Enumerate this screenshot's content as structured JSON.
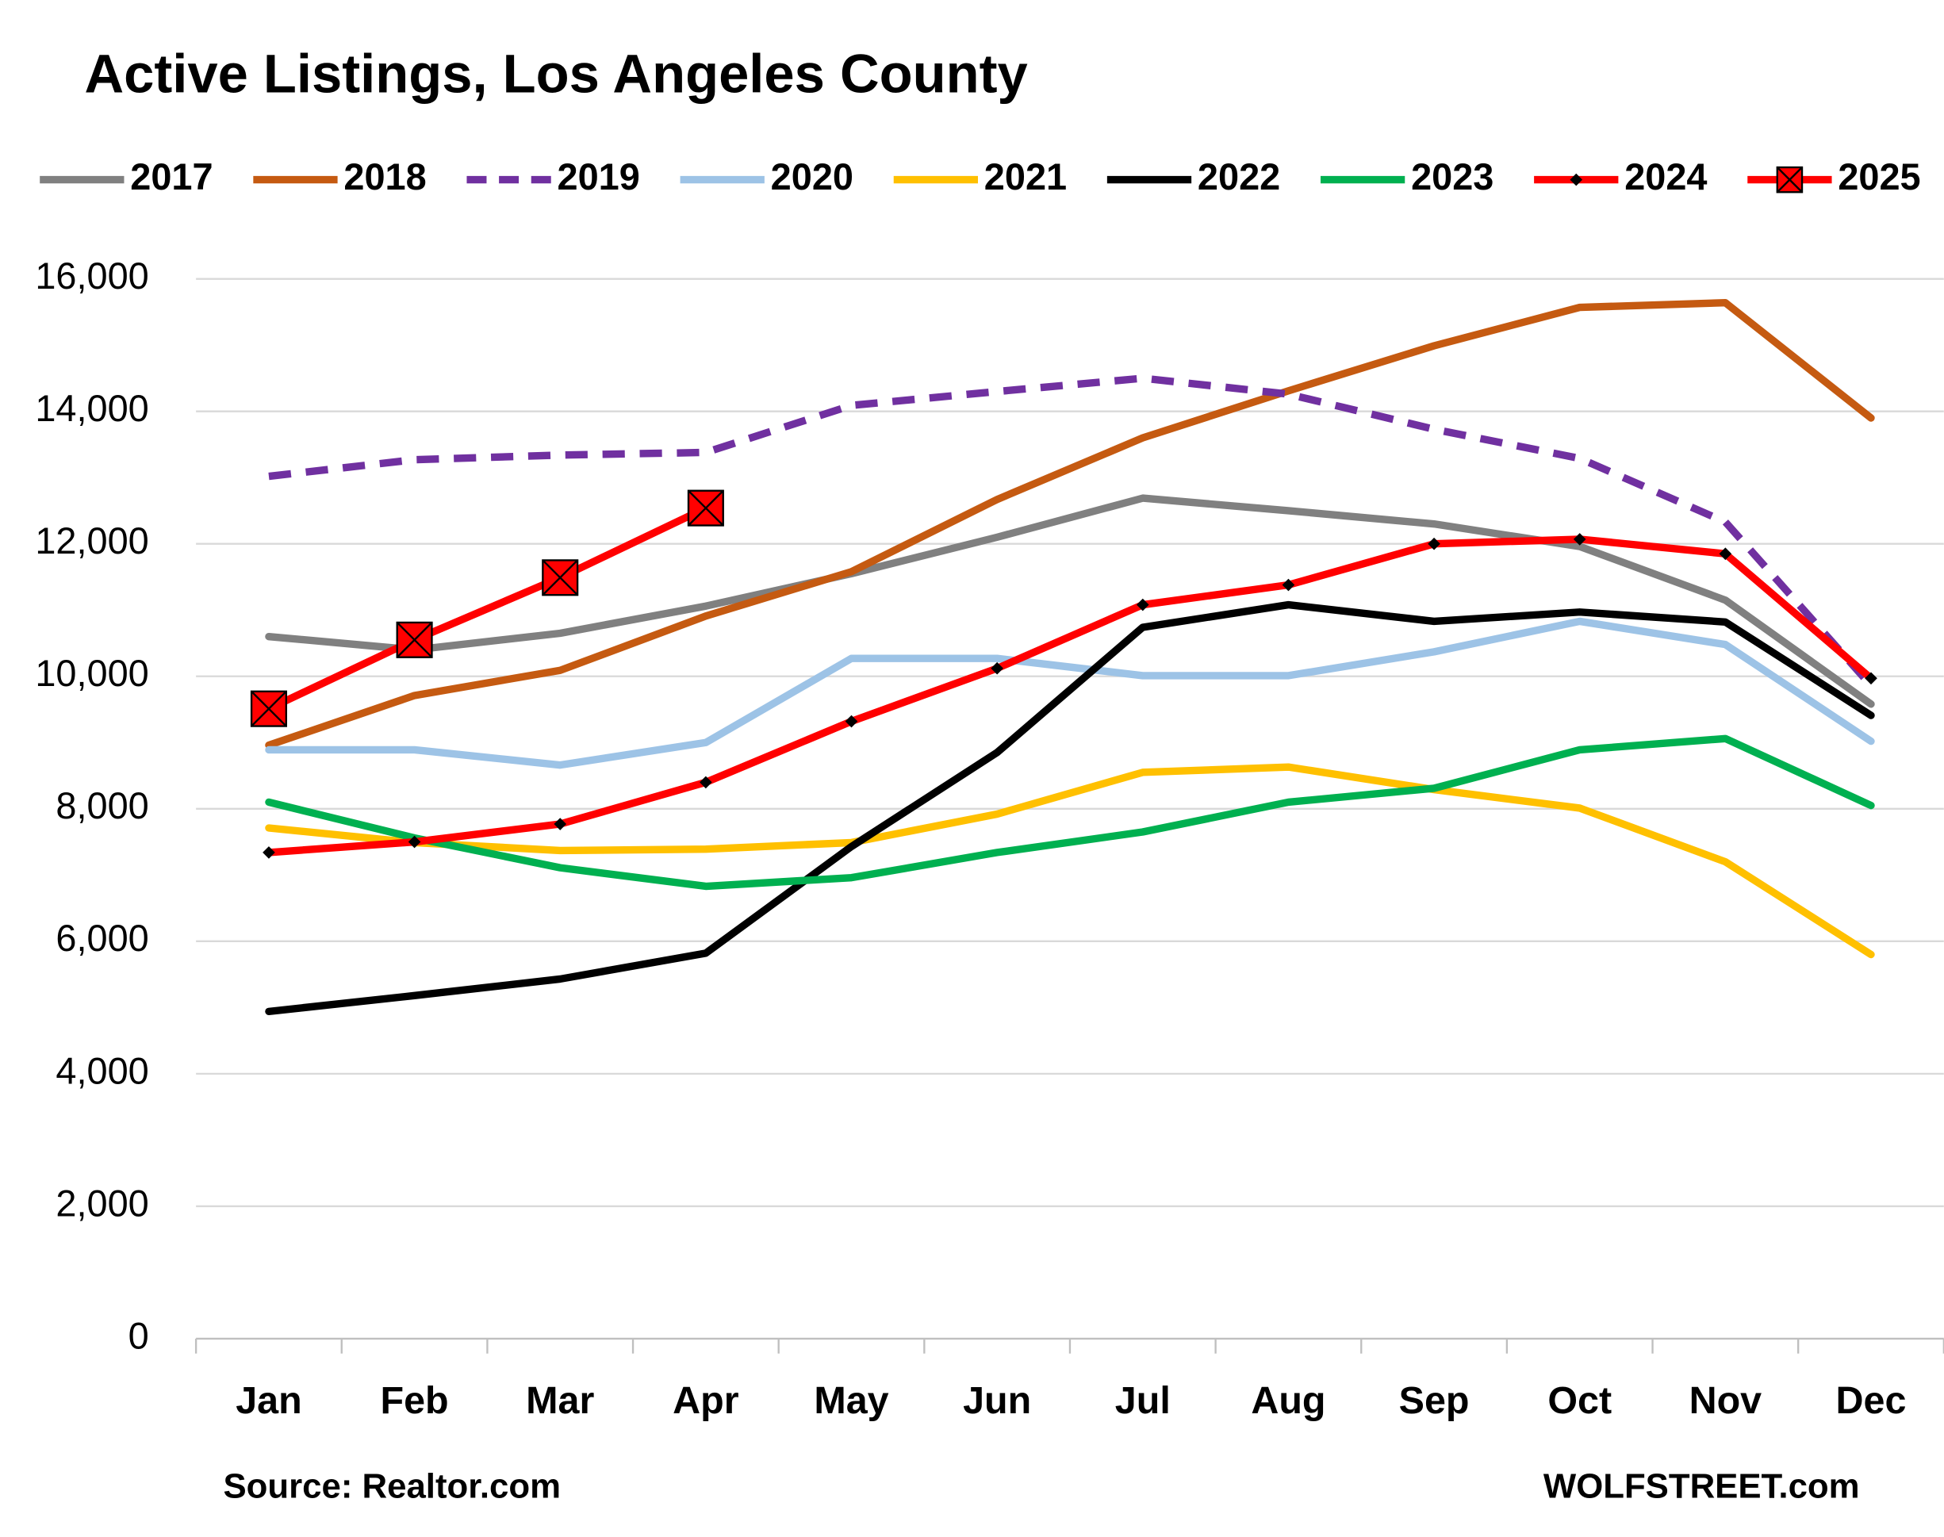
{
  "chart_data": {
    "type": "line",
    "title": "Active Listings, Los Angeles County",
    "source": "Source: Realtor.com",
    "credit": "WOLFSTREET.com",
    "categories": [
      "Jan",
      "Feb",
      "Mar",
      "Apr",
      "May",
      "Jun",
      "Jul",
      "Aug",
      "Sep",
      "Oct",
      "Nov",
      "Dec"
    ],
    "ylim": [
      0,
      16000
    ],
    "yticks": [
      0,
      {
        "value": 2000,
        "label": "2,000"
      },
      {
        "value": 4000,
        "label": "4,000"
      },
      {
        "value": 6000,
        "label": "6,000"
      },
      {
        "value": 8000,
        "label": "8,000"
      },
      {
        "value": 10000,
        "label": "10,000"
      },
      {
        "value": 12000,
        "label": "12,000"
      },
      {
        "value": 14000,
        "label": "14,000"
      },
      {
        "value": 16000,
        "label": "16,000"
      }
    ],
    "grid": true,
    "legend": "top",
    "series": [
      {
        "name": "2017",
        "color": "#808080",
        "values": [
          10600,
          10400,
          10650,
          11060,
          11550,
          12100,
          12690,
          12500,
          12300,
          11960,
          11150,
          9580
        ]
      },
      {
        "name": "2018",
        "color": "#c55a11",
        "values": [
          8960,
          9710,
          10090,
          10910,
          11580,
          12670,
          13600,
          14310,
          14990,
          15570,
          15640,
          13900
        ]
      },
      {
        "name": "2019",
        "color": "#7030a0",
        "dashed": true,
        "values": [
          13020,
          13270,
          13340,
          13380,
          14090,
          14300,
          14500,
          14260,
          13730,
          13290,
          12330,
          9860
        ]
      },
      {
        "name": "2020",
        "color": "#9dc3e6",
        "values": [
          8890,
          8890,
          8660,
          9000,
          10270,
          10270,
          10010,
          10010,
          10370,
          10830,
          10480,
          9020
        ]
      },
      {
        "name": "2021",
        "color": "#ffc000",
        "values": [
          7710,
          7490,
          7370,
          7390,
          7490,
          7920,
          8550,
          8630,
          8290,
          8010,
          7200,
          5800
        ]
      },
      {
        "name": "2022",
        "color": "#000000",
        "values": [
          4940,
          5180,
          5430,
          5820,
          7430,
          8850,
          10740,
          11080,
          10830,
          10970,
          10820,
          9410
        ]
      },
      {
        "name": "2023",
        "color": "#00b050",
        "values": [
          8100,
          7560,
          7110,
          6830,
          6960,
          7340,
          7650,
          8100,
          8310,
          8890,
          9060,
          8050
        ]
      },
      {
        "name": "2024",
        "color": "#ff0000",
        "marker": "diamond",
        "values": [
          7340,
          7500,
          7770,
          8400,
          9320,
          10120,
          11080,
          11380,
          12000,
          12070,
          11850,
          9970
        ]
      },
      {
        "name": "2025",
        "color": "#ff0000",
        "marker": "square-x",
        "values": [
          9510,
          10550,
          11490,
          12540,
          null,
          null,
          null,
          null,
          null,
          null,
          null,
          null
        ]
      }
    ]
  }
}
